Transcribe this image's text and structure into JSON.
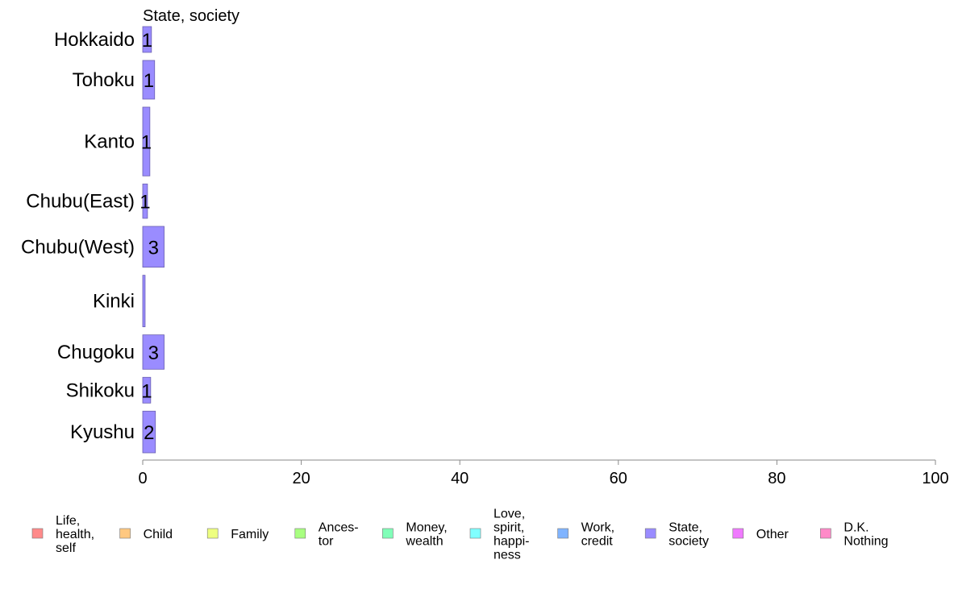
{
  "chart_data": {
    "type": "bar",
    "orientation": "horizontal",
    "stacked": true,
    "panel_title": "State, society",
    "categories": [
      "Hokkaido",
      "Tohoku",
      "Kanto",
      "Chubu(East)",
      "Chubu(West)",
      "Kinki",
      "Chugoku",
      "Shikoku",
      "Kyushu"
    ],
    "category_relative_heights": [
      0.6,
      0.9,
      1.6,
      0.8,
      0.95,
      1.2,
      0.8,
      0.6,
      0.97
    ],
    "series": [
      {
        "name": "State, society",
        "color": "#9a8cff",
        "values": [
          1.1,
          1.5,
          0.9,
          0.6,
          2.7,
          0.3,
          2.7,
          1.0,
          1.6
        ],
        "labels": [
          "1",
          "1",
          "1",
          "1",
          "3",
          "",
          "3",
          "1",
          "2"
        ]
      }
    ],
    "xlim": [
      0,
      100
    ],
    "xticks": [
      "0",
      "20",
      "40",
      "60",
      "80",
      "100"
    ],
    "xlabel": "",
    "ylabel": "",
    "grid": false,
    "legend_position": "bottom",
    "legend": [
      {
        "lines": [
          "Life,",
          "health,",
          "self"
        ],
        "color": "#ff8a8a"
      },
      {
        "lines": [
          "Child"
        ],
        "color": "#ffc880"
      },
      {
        "lines": [
          "Family"
        ],
        "color": "#eeff80"
      },
      {
        "lines": [
          "Ances-",
          "tor"
        ],
        "color": "#a8ff80"
      },
      {
        "lines": [
          "Money,",
          "wealth"
        ],
        "color": "#80ffb8"
      },
      {
        "lines": [
          "Love,",
          "spirit,",
          "happi-",
          "ness"
        ],
        "color": "#80ffff"
      },
      {
        "lines": [
          "Work,",
          "credit"
        ],
        "color": "#80b4ff"
      },
      {
        "lines": [
          "State,",
          "society"
        ],
        "color": "#9a8cff"
      },
      {
        "lines": [
          "Other"
        ],
        "color": "#f07aff"
      },
      {
        "lines": [
          "D.K.",
          "Nothing"
        ],
        "color": "#ff8ac8"
      }
    ]
  }
}
